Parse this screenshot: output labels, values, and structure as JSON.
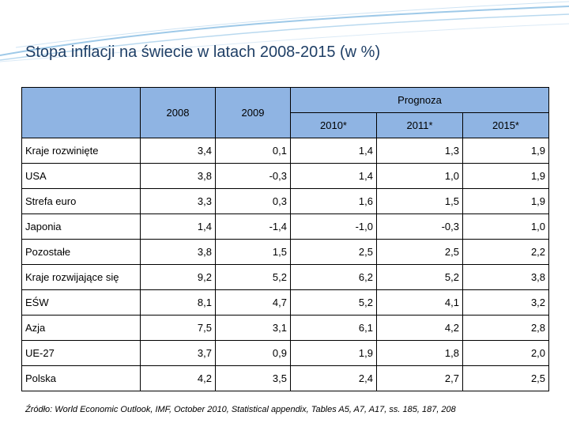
{
  "title": "Stopa inflacji na świecie w latach 2008-2015 (w %)",
  "table": {
    "header": {
      "prognoza": "Prognoza",
      "years": [
        "2008",
        "2009",
        "2010*",
        "2011*",
        "2015*"
      ]
    },
    "rows": [
      {
        "label": "Kraje rozwinięte",
        "values": [
          "3,4",
          "0,1",
          "1,4",
          "1,3",
          "1,9"
        ]
      },
      {
        "label": "USA",
        "values": [
          "3,8",
          "-0,3",
          "1,4",
          "1,0",
          "1,9"
        ]
      },
      {
        "label": "Strefa euro",
        "values": [
          "3,3",
          "0,3",
          "1,6",
          "1,5",
          "1,9"
        ]
      },
      {
        "label": "Japonia",
        "values": [
          "1,4",
          "-1,4",
          "-1,0",
          "-0,3",
          "1,0"
        ]
      },
      {
        "label": "Pozostałe",
        "values": [
          "3,8",
          "1,5",
          "2,5",
          "2,5",
          "2,2"
        ]
      },
      {
        "label": "Kraje rozwijające się",
        "values": [
          "9,2",
          "5,2",
          "6,2",
          "5,2",
          "3,8"
        ]
      },
      {
        "label": "EŚW",
        "values": [
          "8,1",
          "4,7",
          "5,2",
          "4,1",
          "3,2"
        ]
      },
      {
        "label": "Azja",
        "values": [
          "7,5",
          "3,1",
          "6,1",
          "4,2",
          "2,8"
        ]
      },
      {
        "label": "UE-27",
        "values": [
          "3,7",
          "0,9",
          "1,9",
          "1,8",
          "2,0"
        ]
      },
      {
        "label": "Polska",
        "values": [
          "4,2",
          "3,5",
          "2,4",
          "2,7",
          "2,5"
        ]
      }
    ]
  },
  "source": "Źródło: World Economic Outlook, IMF, October 2010, Statistical appendix, Tables A5, A7, A17, ss. 185, 187, 208",
  "colors": {
    "header_fill": "#8fb4e3",
    "title": "#1f3f66",
    "swoosh": "#9ec9e8"
  }
}
